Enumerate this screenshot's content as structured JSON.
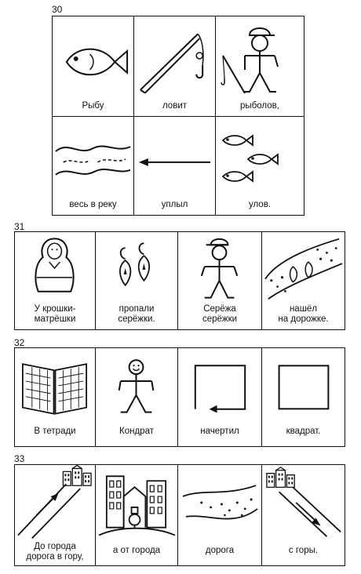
{
  "exercises": [
    {
      "number": "30",
      "cells": [
        {
          "caption": "Рыбу",
          "icon": "fish-icon"
        },
        {
          "caption": "ловит",
          "icon": "fishing-rod-icon"
        },
        {
          "caption": "рыболов,",
          "icon": "fisherman-icon"
        },
        {
          "caption": "весь в реку",
          "icon": "river-icon"
        },
        {
          "caption": "уплыл",
          "icon": "arrow-left-icon"
        },
        {
          "caption": "улов.",
          "icon": "three-fish-icon"
        }
      ]
    },
    {
      "number": "31",
      "cells": [
        {
          "caption_lines": [
            "У крошки-",
            "матрёшки"
          ],
          "icon": "matryoshka-icon"
        },
        {
          "caption_lines": [
            "пропали",
            "серёжки."
          ],
          "icon": "earrings-icon"
        },
        {
          "caption_lines": [
            "Серёжа",
            "серёжки"
          ],
          "icon": "boy-icon"
        },
        {
          "caption_lines": [
            "нашёл",
            "на дорожке."
          ],
          "icon": "earrings-on-path-icon"
        }
      ]
    },
    {
      "number": "32",
      "cells": [
        {
          "caption": "В тетради",
          "icon": "open-notebook-icon"
        },
        {
          "caption": "Кондрат",
          "icon": "smiling-man-icon"
        },
        {
          "caption": "начертил",
          "icon": "drawing-square-icon"
        },
        {
          "caption": "квадрат.",
          "icon": "square-icon"
        }
      ]
    },
    {
      "number": "33",
      "cells": [
        {
          "caption_lines": [
            "До города",
            "дорога в гору,"
          ],
          "icon": "uphill-road-icon"
        },
        {
          "caption": "а от города",
          "icon": "city-icon"
        },
        {
          "caption": "дорога",
          "icon": "road-icon"
        },
        {
          "caption": "с горы.",
          "icon": "downhill-road-icon"
        }
      ]
    }
  ]
}
